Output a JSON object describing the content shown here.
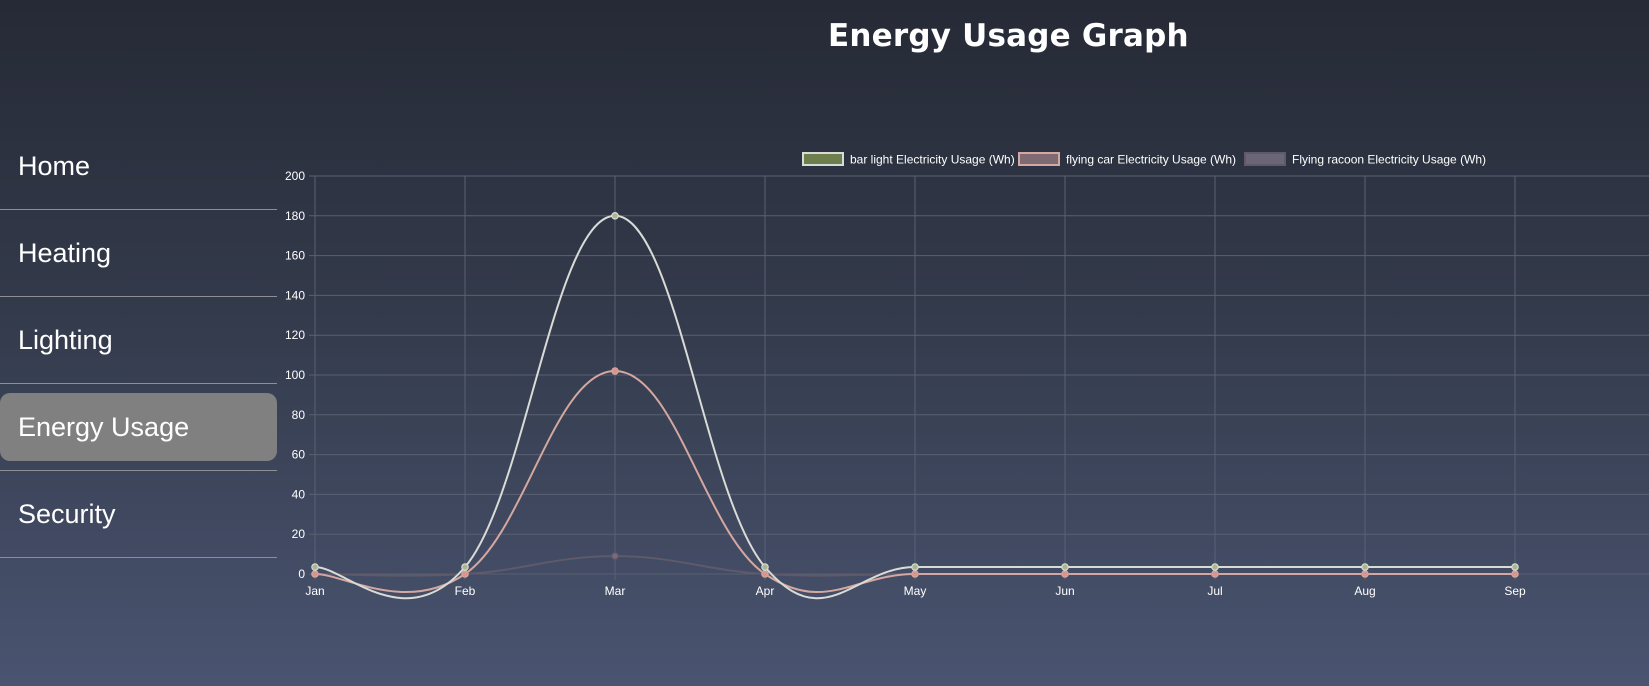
{
  "page": {
    "title": "Energy Usage Graph"
  },
  "sidebar": {
    "items": [
      {
        "label": "Home",
        "active": false
      },
      {
        "label": "Heating",
        "active": false
      },
      {
        "label": "Lighting",
        "active": false
      },
      {
        "label": "Energy Usage",
        "active": true
      },
      {
        "label": "Security",
        "active": false
      }
    ]
  },
  "colors": {
    "nav_active_bg": "#808080",
    "grid": "#5a6072",
    "tick_text": "#ffffff"
  },
  "chart_data": {
    "type": "line",
    "title": "",
    "xlabel": "",
    "ylabel": "",
    "categories": [
      "Jan",
      "Feb",
      "Mar",
      "Apr",
      "May",
      "Jun",
      "Jul",
      "Aug",
      "Sep"
    ],
    "ylim": [
      0,
      200
    ],
    "yticks": [
      0,
      20,
      40,
      60,
      80,
      100,
      120,
      140,
      160,
      180,
      200
    ],
    "grid": true,
    "legend_position": "top",
    "series": [
      {
        "name": "bar light Electricity Usage (Wh)",
        "values": [
          3.5,
          3.5,
          180,
          3.5,
          3.5,
          3.5,
          3.5,
          3.5,
          3.5
        ],
        "line_color": "#d9dbd6",
        "fill_color": "#6e7f4e",
        "point_color": "#a7b78e"
      },
      {
        "name": "flying car Electricity Usage (Wh)",
        "values": [
          0,
          0,
          102,
          0,
          0,
          0,
          0,
          0,
          0
        ],
        "line_color": "#d4a7a0",
        "fill_color": "#7d6a73",
        "point_color": "#d8958e"
      },
      {
        "name": "Flying racoon Electricity Usage (Wh)",
        "values": [
          0,
          0,
          9,
          0,
          0,
          0,
          0,
          0,
          0
        ],
        "line_color": "#5e5a6a",
        "fill_color": "#6a6577",
        "point_color": "#7c6a7c"
      }
    ]
  }
}
